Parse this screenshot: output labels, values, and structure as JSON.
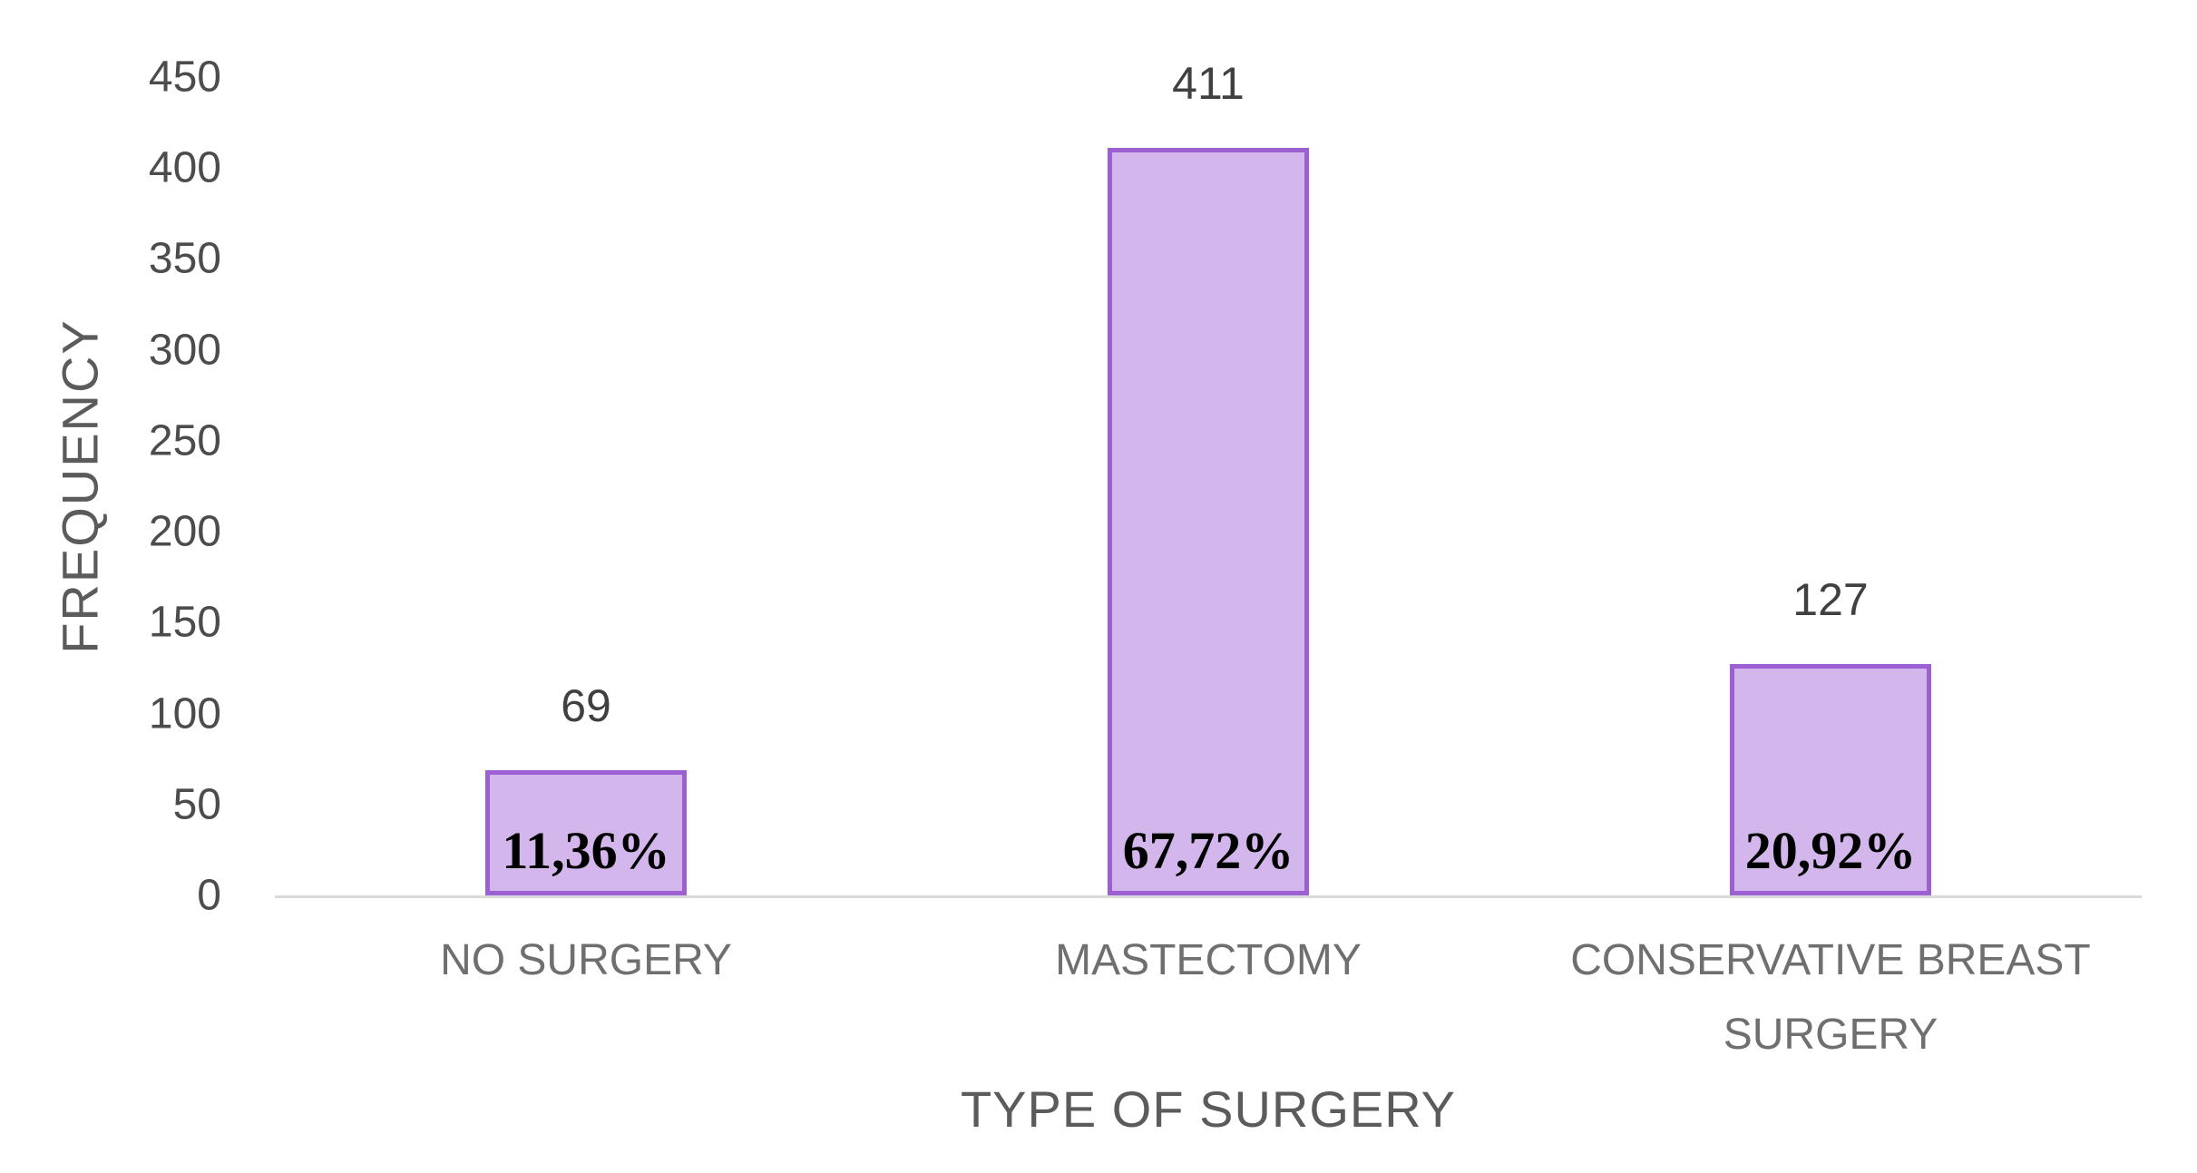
{
  "chart_data": {
    "type": "bar",
    "categories": [
      "NO SURGERY",
      "MASTECTOMY",
      "CONSERVATIVE BREAST SURGERY"
    ],
    "values": [
      69,
      411,
      127
    ],
    "value_labels": [
      "69",
      "411",
      "127"
    ],
    "pct_labels": [
      "11,36%",
      "67,72%",
      "20,92%"
    ],
    "xlabel": "TYPE OF SURGERY",
    "ylabel": "FREQUENCY",
    "ylim": [
      0,
      450
    ],
    "yticks": [
      0,
      50,
      100,
      150,
      200,
      250,
      300,
      350,
      400,
      450
    ],
    "grid": false,
    "legend": false,
    "colors": {
      "background": "#ffffff",
      "bar_fill": "#d2b6ec",
      "bar_border": "#9c60d2",
      "axis_line": "#d9d9d9",
      "tick_label": "#4c4c4c",
      "value_label": "#404040",
      "pct_label": "#000000",
      "category_label": "#6f6f6f",
      "axis_title": "#5b5b5b"
    }
  }
}
